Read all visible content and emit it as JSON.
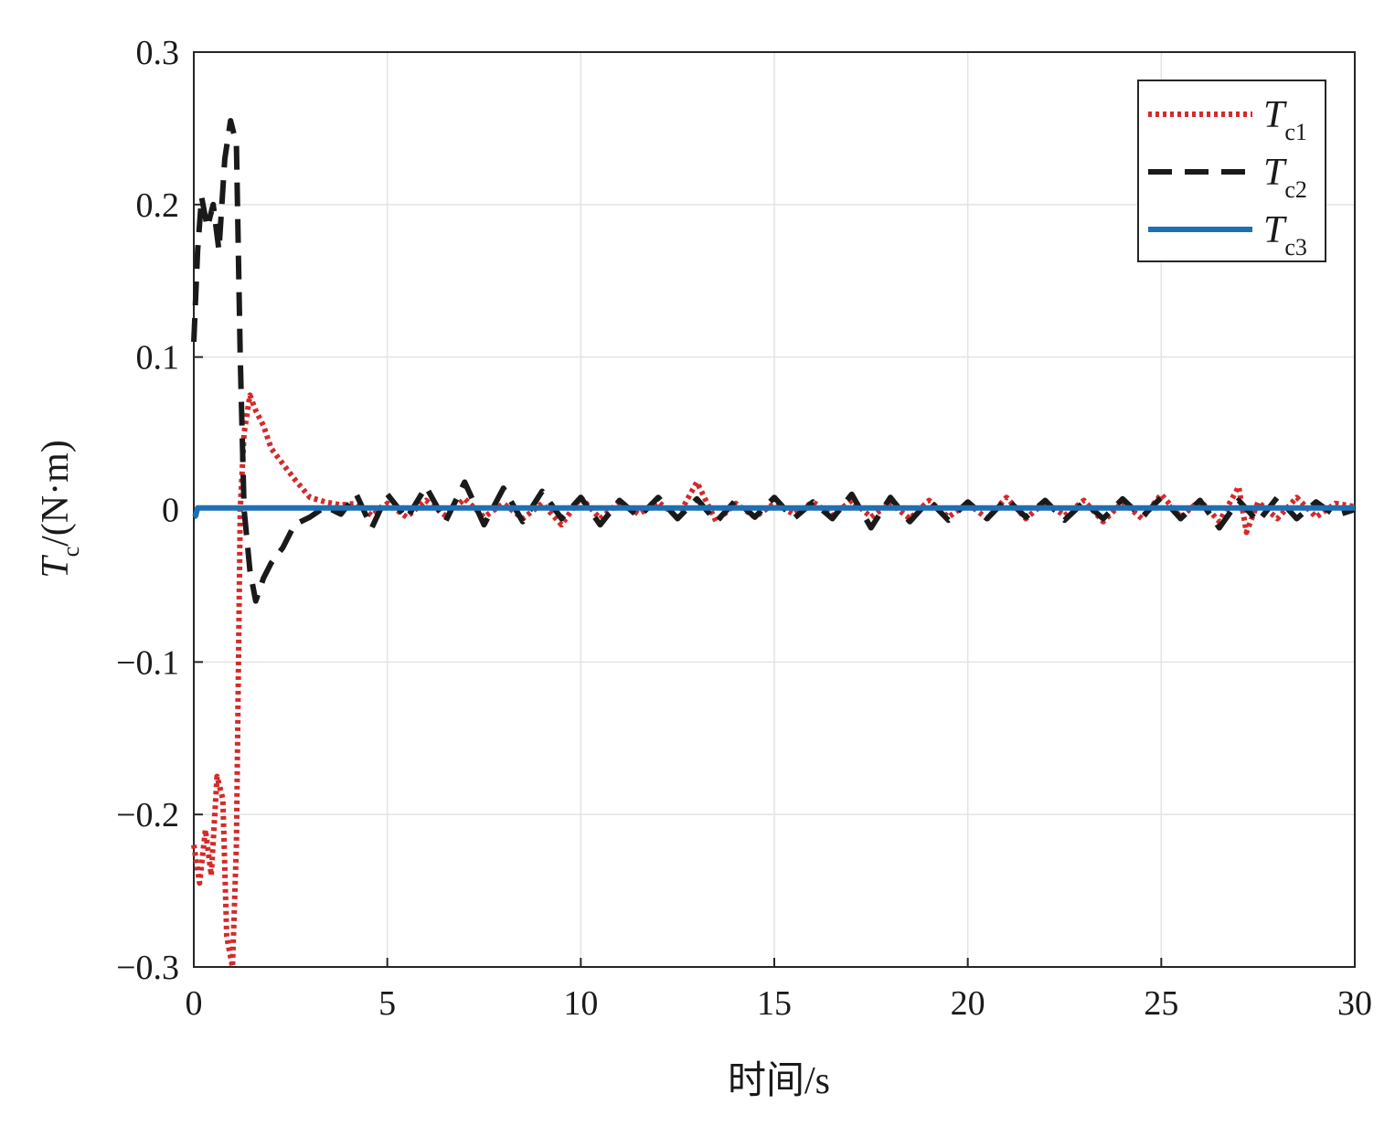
{
  "chart_data": {
    "type": "line",
    "xlabel": "时间/s",
    "ylabel": {
      "symbol": "T",
      "subscript": "c",
      "unit": "/(N·m)"
    },
    "xlim": [
      0,
      30
    ],
    "ylim": [
      -0.3,
      0.3
    ],
    "xticks": [
      0,
      5,
      10,
      15,
      20,
      25,
      30
    ],
    "yticks": [
      0.3,
      0.2,
      0.1,
      0,
      -0.1,
      -0.2,
      -0.3
    ],
    "xtick_labels": [
      "0",
      "5",
      "10",
      "15",
      "20",
      "25",
      "30"
    ],
    "ytick_labels": [
      "0.3",
      "0.2",
      "0.1",
      "0",
      "−0.1",
      "−0.2",
      "−0.3"
    ],
    "grid": true,
    "legend_position": "top-right",
    "series": [
      {
        "name": "Tc1",
        "label_main": "T",
        "label_sub": "c1",
        "color": "#d42a2a",
        "style": "dotted",
        "x": [
          0,
          0.15,
          0.3,
          0.45,
          0.6,
          0.75,
          0.85,
          1.0,
          1.1,
          1.2,
          1.3,
          1.45,
          1.6,
          1.8,
          2.0,
          2.3,
          2.6,
          3.0,
          3.4,
          3.8,
          4.2,
          4.6,
          5.0,
          5.5,
          6.0,
          6.5,
          7.0,
          7.5,
          8.0,
          8.5,
          9.0,
          9.5,
          10.0,
          10.5,
          11.0,
          11.5,
          12.0,
          12.5,
          13.0,
          13.5,
          14.0,
          14.5,
          15.0,
          15.5,
          16.0,
          16.5,
          17.0,
          17.5,
          18.0,
          18.5,
          19.0,
          19.5,
          20.0,
          20.5,
          21.0,
          21.5,
          22.0,
          22.5,
          23.0,
          23.5,
          24.0,
          24.5,
          25.0,
          25.5,
          26.0,
          26.5,
          27.0,
          27.2,
          27.5,
          28.0,
          28.5,
          29.0,
          29.5,
          30.0
        ],
        "y": [
          -0.22,
          -0.245,
          -0.21,
          -0.24,
          -0.175,
          -0.19,
          -0.28,
          -0.3,
          -0.22,
          0.0,
          0.05,
          0.075,
          0.065,
          0.055,
          0.04,
          0.03,
          0.02,
          0.008,
          0.005,
          0.003,
          0.004,
          -0.004,
          0.004,
          -0.005,
          0.006,
          -0.004,
          0.007,
          -0.005,
          0.004,
          -0.006,
          0.004,
          -0.01,
          0.008,
          -0.006,
          0.005,
          -0.003,
          0.005,
          -0.005,
          0.018,
          -0.008,
          0.004,
          -0.005,
          0.004,
          -0.003,
          0.005,
          -0.004,
          0.006,
          -0.005,
          0.004,
          -0.006,
          0.006,
          -0.005,
          0.004,
          -0.006,
          0.008,
          -0.006,
          0.005,
          -0.004,
          0.006,
          -0.008,
          0.005,
          -0.006,
          0.01,
          -0.005,
          0.006,
          -0.008,
          0.015,
          -0.015,
          0.005,
          -0.006,
          0.008,
          -0.005,
          0.004,
          0.002
        ]
      },
      {
        "name": "Tc2",
        "label_main": "T",
        "label_sub": "c2",
        "color": "#1a1a1a",
        "style": "dashed",
        "x": [
          0,
          0.1,
          0.2,
          0.35,
          0.5,
          0.65,
          0.8,
          0.95,
          1.1,
          1.2,
          1.3,
          1.45,
          1.6,
          1.8,
          2.0,
          2.3,
          2.6,
          3.0,
          3.4,
          3.8,
          4.2,
          4.6,
          5.0,
          5.5,
          6.0,
          6.5,
          7.0,
          7.5,
          8.0,
          8.5,
          9.0,
          9.5,
          10.0,
          10.5,
          11.0,
          11.5,
          12.0,
          12.5,
          13.0,
          13.5,
          14.0,
          14.5,
          15.0,
          15.5,
          16.0,
          16.5,
          17.0,
          17.5,
          18.0,
          18.5,
          19.0,
          19.5,
          20.0,
          20.5,
          21.0,
          21.5,
          22.0,
          22.5,
          23.0,
          23.5,
          24.0,
          24.5,
          25.0,
          25.5,
          26.0,
          26.5,
          27.0,
          27.5,
          28.0,
          28.5,
          29.0,
          29.5,
          30.0
        ],
        "y": [
          0.11,
          0.17,
          0.205,
          0.185,
          0.2,
          0.17,
          0.23,
          0.255,
          0.24,
          0.1,
          0.0,
          -0.04,
          -0.06,
          -0.045,
          -0.035,
          -0.025,
          -0.01,
          -0.005,
          0.002,
          -0.003,
          0.01,
          -0.012,
          0.01,
          -0.006,
          0.015,
          -0.008,
          0.018,
          -0.01,
          0.014,
          -0.008,
          0.012,
          -0.006,
          0.008,
          -0.01,
          0.006,
          -0.005,
          0.008,
          -0.006,
          0.007,
          -0.008,
          0.006,
          -0.005,
          0.008,
          -0.006,
          0.005,
          -0.006,
          0.01,
          -0.012,
          0.008,
          -0.008,
          0.006,
          -0.007,
          0.005,
          -0.006,
          0.007,
          -0.005,
          0.006,
          -0.007,
          0.005,
          -0.006,
          0.007,
          -0.005,
          0.008,
          -0.006,
          0.006,
          -0.012,
          0.006,
          -0.008,
          0.008,
          -0.006,
          0.005,
          -0.004,
          0.0
        ]
      },
      {
        "name": "Tc3",
        "label_main": "T",
        "label_sub": "c3",
        "color": "#1f6fb4",
        "style": "solid",
        "x": [
          0,
          0.05,
          0.1,
          0.2,
          0.5,
          1.0,
          5.0,
          10.0,
          15.0,
          20.0,
          25.0,
          30.0
        ],
        "y": [
          -0.005,
          -0.004,
          0.001,
          0.001,
          0.001,
          0.001,
          0.001,
          0.001,
          0.001,
          0.001,
          0.001,
          0.001
        ]
      }
    ]
  }
}
